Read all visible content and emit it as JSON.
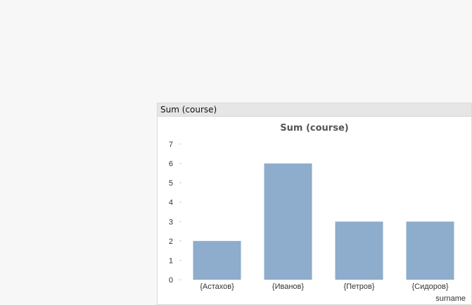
{
  "window": {
    "caption": "Sum (course)"
  },
  "colors": {
    "bar": "#8eaccb",
    "tick": "#cccccc",
    "caption_bg": "#e6e6e6"
  },
  "chart_data": {
    "type": "bar",
    "title": "Sum (course)",
    "xlabel": "surname",
    "ylabel": "",
    "categories": [
      "{Астахов}",
      "{Иванов}",
      "{Петров}",
      "{Сидоров}"
    ],
    "values": [
      2,
      6,
      3,
      3
    ],
    "ylim": [
      0,
      7
    ],
    "yticks": [
      "0",
      "1",
      "2",
      "3",
      "4",
      "5",
      "6",
      "7"
    ],
    "grid": false,
    "legend": "none"
  }
}
